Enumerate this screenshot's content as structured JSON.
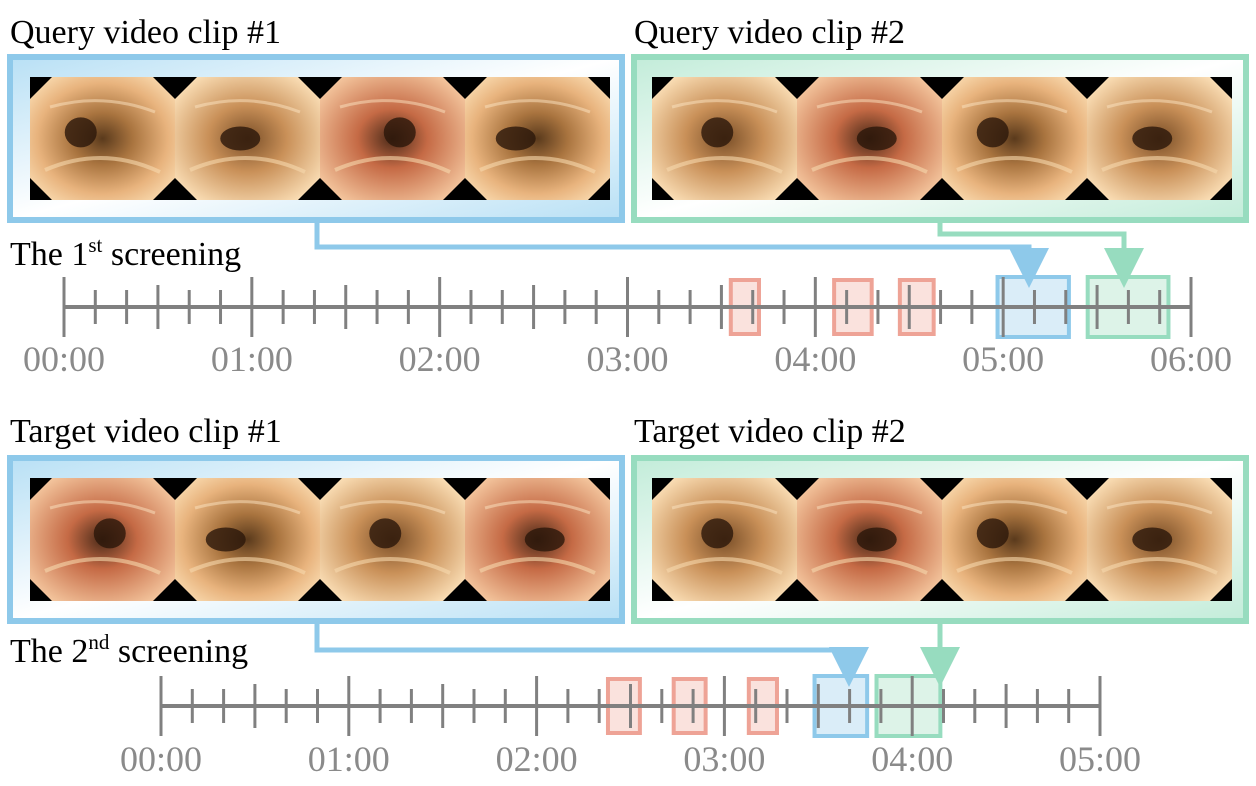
{
  "colors": {
    "blue": "#8ec9ea",
    "blue_fill_light": "#ffffff",
    "green": "#97dcbf",
    "green_fill_light": "#ffffff",
    "red": "#eea396",
    "red_fill": "#f8d8d1",
    "axis": "#808080",
    "tick_label": "#8a8a8a",
    "title_text": "#000000"
  },
  "icons": {
    "frame": "endoscopy-frame-octagon"
  },
  "query": {
    "clip1": {
      "title": "Query video clip #1",
      "frames": 4
    },
    "clip2": {
      "title": "Query video clip #2",
      "frames": 4
    }
  },
  "target": {
    "clip1": {
      "title": "Target video clip #1",
      "frames": 4
    },
    "clip2": {
      "title": "Target video clip #2",
      "frames": 4
    }
  },
  "screening1": {
    "label_prefix": "The 1",
    "label_sup": "st",
    "label_suffix": " screening",
    "tick_labels": [
      "00:00",
      "01:00",
      "02:00",
      "03:00",
      "04:00",
      "05:00",
      "06:00"
    ],
    "minutes_total": 6,
    "minor_ticks_per_minute": 6,
    "red_segments": [
      [
        3.55,
        3.7
      ],
      [
        4.1,
        4.3
      ],
      [
        4.45,
        4.63
      ]
    ],
    "blue_segment": [
      4.97,
      5.35
    ],
    "green_segment": [
      5.45,
      5.88
    ]
  },
  "screening2": {
    "label_prefix": "The 2",
    "label_sup": "nd",
    "label_suffix": " screening",
    "tick_labels": [
      "00:00",
      "01:00",
      "02:00",
      "03:00",
      "04:00",
      "05:00"
    ],
    "minutes_total": 5,
    "minor_ticks_per_minute": 6,
    "red_segments": [
      [
        2.38,
        2.55
      ],
      [
        2.73,
        2.9
      ],
      [
        3.13,
        3.28
      ]
    ],
    "blue_segment": [
      3.48,
      3.76
    ],
    "green_segment": [
      3.81,
      4.15
    ]
  }
}
